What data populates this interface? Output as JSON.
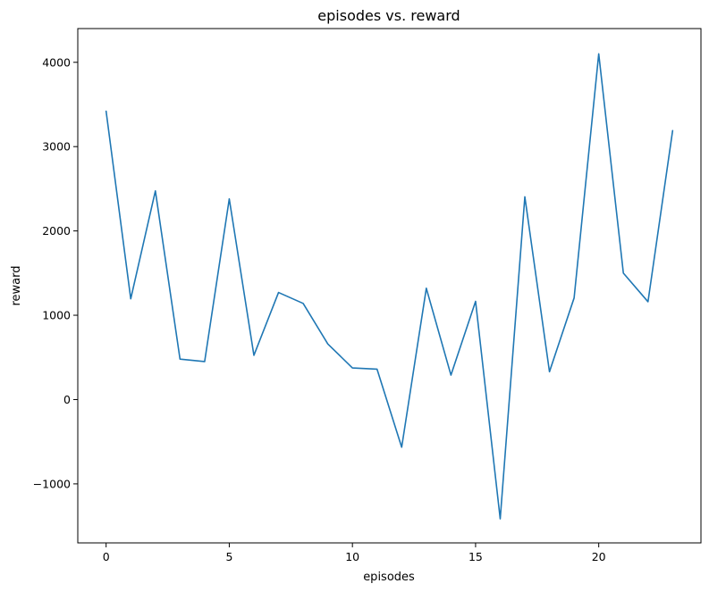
{
  "chart_data": {
    "type": "line",
    "title": "episodes vs. reward",
    "xlabel": "episodes",
    "ylabel": "reward",
    "x": [
      0,
      1,
      2,
      3,
      4,
      5,
      6,
      7,
      8,
      9,
      10,
      11,
      12,
      13,
      14,
      15,
      16,
      17,
      18,
      19,
      20,
      21,
      22,
      23
    ],
    "series": [
      {
        "values": [
          3420,
          1195,
          2475,
          480,
          450,
          2380,
          525,
          1270,
          1140,
          660,
          375,
          360,
          -565,
          1320,
          290,
          1165,
          -1415,
          2405,
          330,
          1205,
          4100,
          1500,
          1160,
          3190
        ],
        "color": "#1f77b4"
      }
    ],
    "xlim": [
      -1.15,
      24.15
    ],
    "ylim": [
      -1700,
      4400
    ],
    "xticks": [
      0,
      5,
      10,
      15,
      20
    ],
    "xtick_labels": [
      "0",
      "5",
      "10",
      "15",
      "20"
    ],
    "yticks": [
      -1000,
      0,
      1000,
      2000,
      3000,
      4000
    ],
    "ytick_labels": [
      "−1000",
      "0",
      "1000",
      "2000",
      "3000",
      "4000"
    ],
    "grid": false,
    "legend": "none"
  }
}
